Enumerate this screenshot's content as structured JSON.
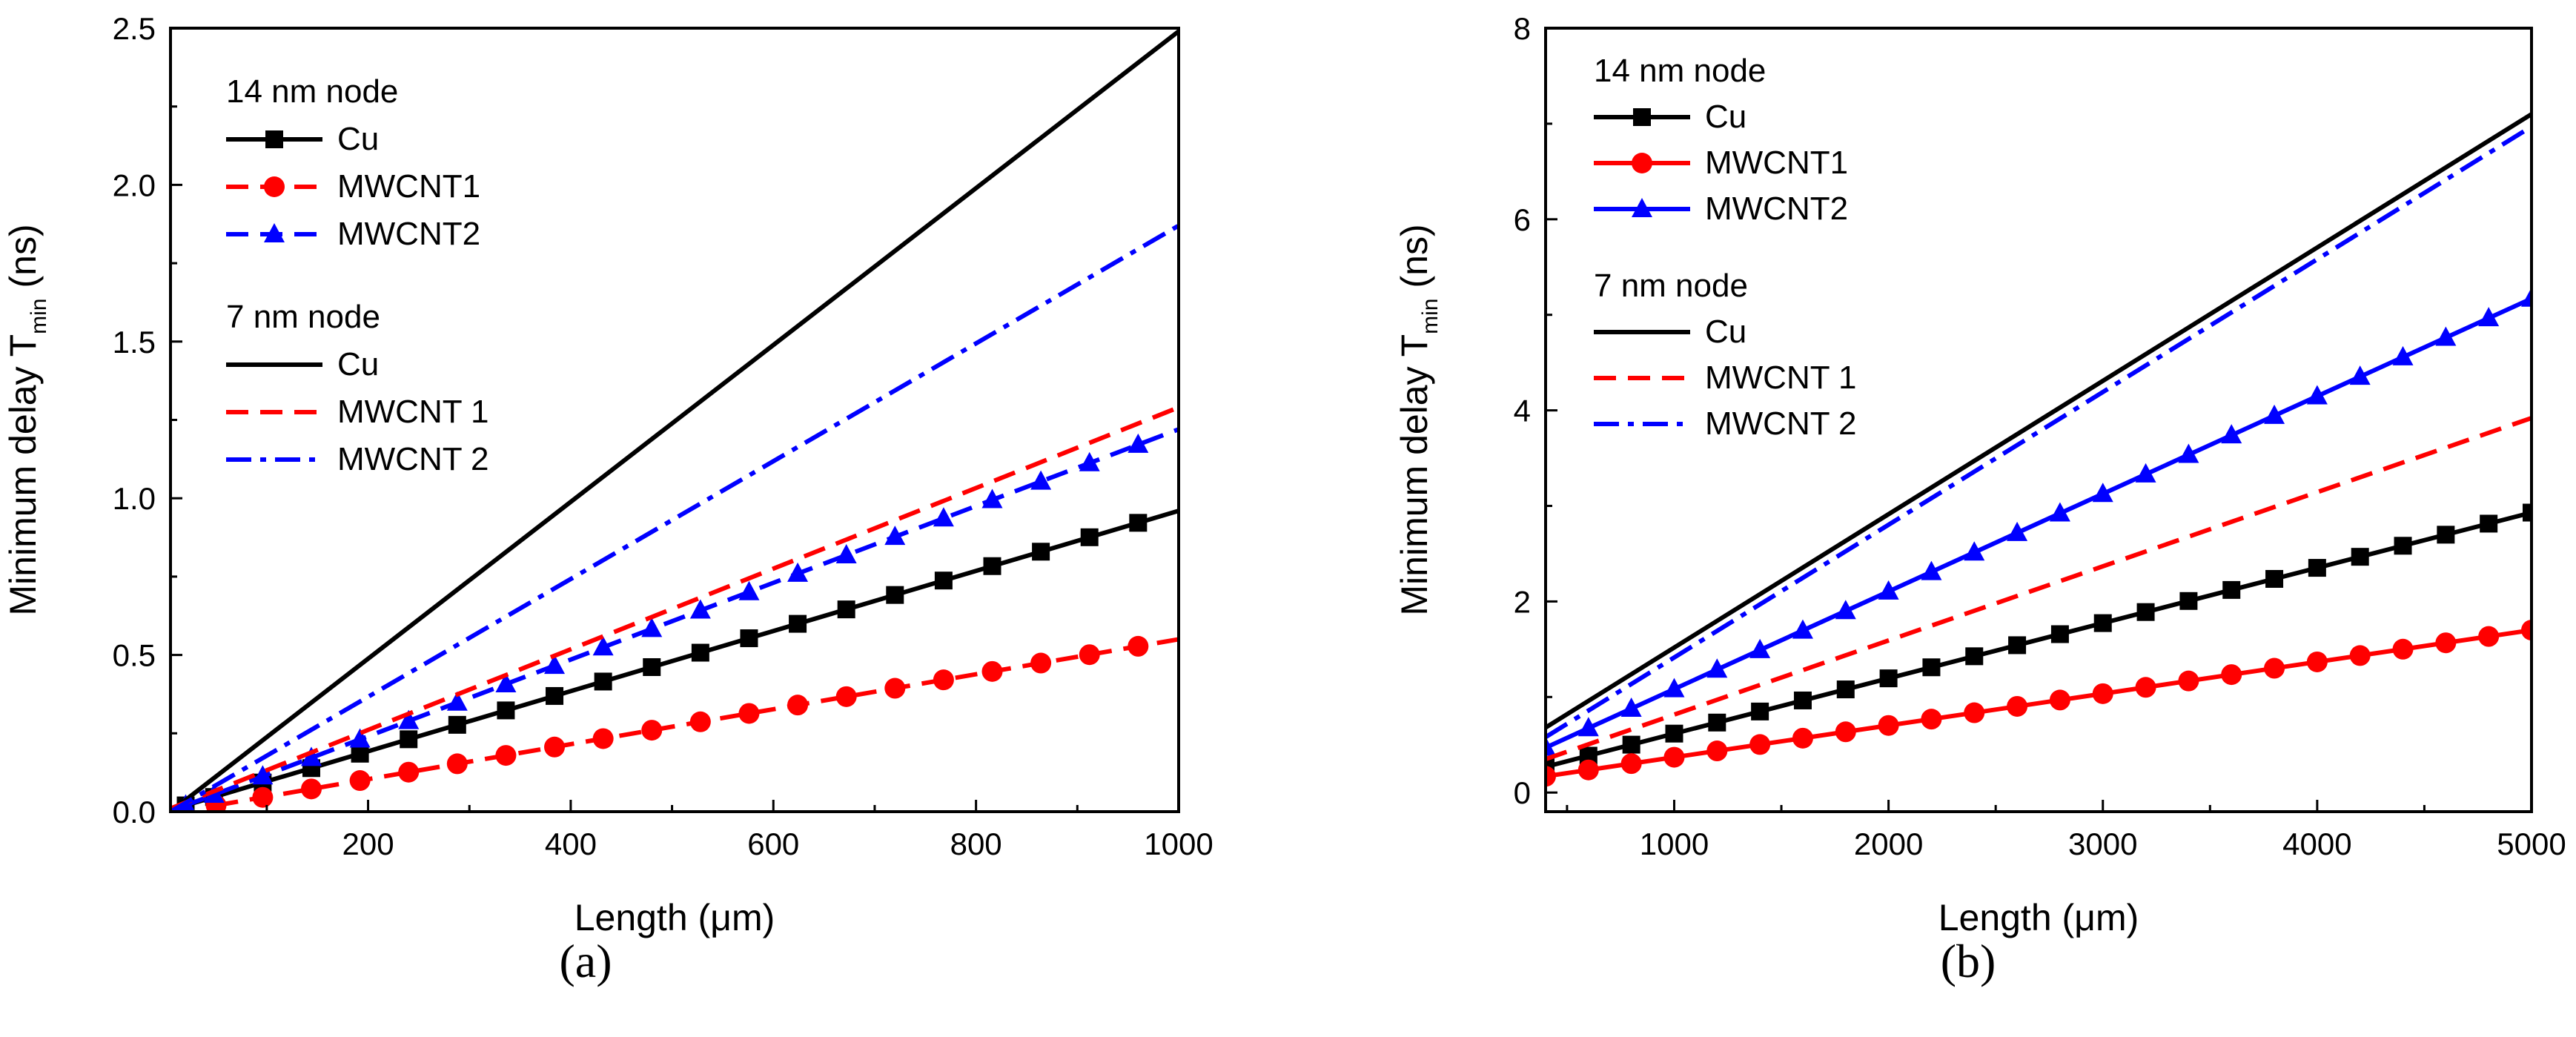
{
  "chart_data": [
    {
      "type": "line",
      "panel_label": "(a)",
      "xlabel": "Length (μm)",
      "ylabel_main": "Minimum delay T",
      "ylabel_sub": "min",
      "ylabel_unit": "(ns)",
      "xlim": [
        5,
        1000
      ],
      "ylim": [
        0,
        2.5
      ],
      "xticks": [
        200,
        400,
        600,
        800,
        1000
      ],
      "xtick_labels": [
        "200",
        "400",
        "600",
        "800",
        "1000"
      ],
      "yticks": [
        0,
        0.5,
        1,
        1.5,
        2,
        2.5
      ],
      "ytick_labels": [
        "0.0",
        "0.5",
        "1.0",
        "1.5",
        "2.0",
        "2.5"
      ],
      "legend_position": "top-left",
      "legend_groups": [
        {
          "title": "14 nm node",
          "entries": [
            "Cu",
            "MWCNT1",
            "MWCNT2"
          ]
        },
        {
          "title": "7 nm node",
          "entries": [
            "Cu",
            "MWCNT 1",
            "MWCNT 2"
          ]
        }
      ],
      "series": [
        {
          "name": "Cu",
          "node": "14 nm",
          "color": "#000000",
          "dash": "solid",
          "marker": "square",
          "x0": 20,
          "x1": 1000,
          "y0": 0.02,
          "y1": 0.96,
          "marker_step": 48
        },
        {
          "name": "MWCNT1",
          "node": "14 nm",
          "color": "#ff0000",
          "dash": "dash",
          "marker": "circle",
          "x0": 50,
          "x1": 1000,
          "y0": 0.02,
          "y1": 0.55,
          "marker_step": 48
        },
        {
          "name": "MWCNT2",
          "node": "14 nm",
          "color": "#0000ff",
          "dash": "dash",
          "marker": "triangle",
          "x0": 20,
          "x1": 1000,
          "y0": 0.02,
          "y1": 1.22,
          "marker_step": 48
        },
        {
          "name": "Cu",
          "node": "7 nm",
          "color": "#000000",
          "dash": "solid",
          "marker": "none",
          "x0": 5,
          "x1": 1000,
          "y0": 0.0,
          "y1": 2.49
        },
        {
          "name": "MWCNT 1",
          "node": "7 nm",
          "color": "#ff0000",
          "dash": "dash",
          "marker": "none",
          "x0": 5,
          "x1": 1000,
          "y0": 0.01,
          "y1": 1.29
        },
        {
          "name": "MWCNT 2",
          "node": "7 nm",
          "color": "#0000ff",
          "dash": "dashdot",
          "marker": "none",
          "x0": 5,
          "x1": 1000,
          "y0": 0.0,
          "y1": 1.87
        }
      ]
    },
    {
      "type": "line",
      "panel_label": "(b)",
      "xlabel": "Length (μm)",
      "ylabel_main": "Minimum delay T",
      "ylabel_sub": "min",
      "ylabel_unit": "(ns)",
      "xlim": [
        400,
        5000
      ],
      "ylim": [
        -0.2,
        8
      ],
      "xticks": [
        1000,
        2000,
        3000,
        4000,
        5000
      ],
      "xtick_labels": [
        "1000",
        "2000",
        "3000",
        "4000",
        "5000"
      ],
      "yticks": [
        0,
        2,
        4,
        6,
        8
      ],
      "ytick_labels": [
        "0",
        "2",
        "4",
        "6",
        "8"
      ],
      "legend_position": "top-left",
      "legend_groups": [
        {
          "title": "14 nm node",
          "entries": [
            "Cu",
            "MWCNT1",
            "MWCNT2"
          ]
        },
        {
          "title": "7 nm node",
          "entries": [
            "Cu",
            "MWCNT 1",
            "MWCNT 2"
          ]
        }
      ],
      "series": [
        {
          "name": "Cu",
          "node": "14 nm",
          "color": "#000000",
          "dash": "solid",
          "marker": "square",
          "x0": 400,
          "x1": 5000,
          "y0": 0.27,
          "y1": 2.93,
          "marker_step": 200
        },
        {
          "name": "MWCNT1",
          "node": "14 nm",
          "color": "#ff0000",
          "dash": "solid",
          "marker": "circle",
          "x0": 400,
          "x1": 5000,
          "y0": 0.17,
          "y1": 1.7,
          "marker_step": 200
        },
        {
          "name": "MWCNT2",
          "node": "14 nm",
          "color": "#0000ff",
          "dash": "solid",
          "marker": "triangle",
          "x0": 400,
          "x1": 5000,
          "y0": 0.47,
          "y1": 5.17,
          "marker_step": 200
        },
        {
          "name": "Cu",
          "node": "7 nm",
          "color": "#000000",
          "dash": "solid",
          "marker": "none",
          "x0": 400,
          "x1": 5000,
          "y0": 0.68,
          "y1": 7.1
        },
        {
          "name": "MWCNT 1",
          "node": "7 nm",
          "color": "#ff0000",
          "dash": "dash",
          "marker": "none",
          "x0": 400,
          "x1": 5000,
          "y0": 0.35,
          "y1": 3.92
        },
        {
          "name": "MWCNT 2",
          "node": "7 nm",
          "color": "#0000ff",
          "dash": "dashdot",
          "marker": "none",
          "x0": 400,
          "x1": 5000,
          "y0": 0.58,
          "y1": 6.97
        }
      ]
    }
  ]
}
